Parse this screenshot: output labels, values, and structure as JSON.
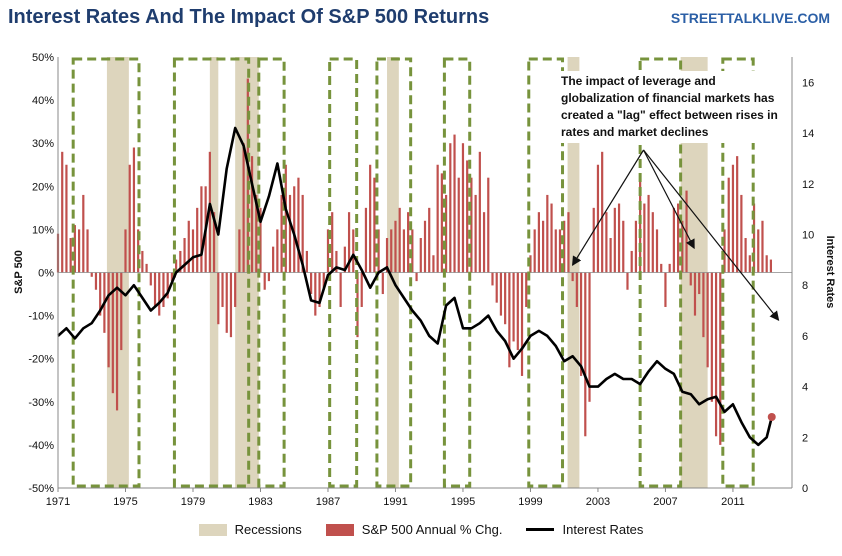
{
  "header": {
    "title": "Interest Rates And The Impact Of S&P 500 Returns",
    "watermark": "STREETTALKLIVE.COM"
  },
  "annotation": {
    "text": "The impact of leverage and globalization of financial markets has created a \"lag\" effect between rises in rates and market declines"
  },
  "colors": {
    "bar": "#c0504d",
    "recession": "#ddd5bd",
    "line": "#000000",
    "dash_box": "#77933c",
    "title": "#1f3d6e",
    "endpoint": "#c0504d"
  },
  "chart_data": {
    "type": "bar",
    "title": "Interest Rates And The Impact Of S&P 500 Returns",
    "xlabel": "",
    "ylabel": "S&P 500",
    "y2label": "Interest Rates",
    "xlim": [
      1971,
      2014.5
    ],
    "ylim": [
      -50,
      50
    ],
    "y2lim": [
      0,
      17
    ],
    "x_ticks": [
      "1971",
      "1975",
      "1979",
      "1983",
      "1987",
      "1991",
      "1995",
      "1999",
      "2003",
      "2007",
      "2011"
    ],
    "y_ticks": [
      "50%",
      "40%",
      "30%",
      "20%",
      "10%",
      "0%",
      "-10%",
      "-20%",
      "-30%",
      "-40%",
      "-50%"
    ],
    "y2_ticks": [
      "16",
      "14",
      "12",
      "10",
      "8",
      "6",
      "4",
      "2",
      "0"
    ],
    "legend": [
      "Recessions",
      "S&P 500 Annual % Chg.",
      "Interest Rates"
    ],
    "legend_position": "bottom",
    "grid": false,
    "recessions": [
      [
        1970.0,
        1970.9
      ],
      [
        1973.9,
        1975.2
      ],
      [
        1980.0,
        1980.5
      ],
      [
        1981.5,
        1982.9
      ],
      [
        1990.5,
        1991.2
      ],
      [
        2001.2,
        2001.9
      ],
      [
        2007.9,
        2009.5
      ]
    ],
    "highlight_periods": [
      [
        1971.9,
        1975.8
      ],
      [
        1977.9,
        1982.3
      ],
      [
        1982.9,
        1984.4
      ],
      [
        1987.1,
        1988.7
      ],
      [
        1989.9,
        1991.9
      ],
      [
        1993.9,
        1995.4
      ],
      [
        1998.9,
        2000.9
      ],
      [
        2005.5,
        2007.9
      ],
      [
        2010.4,
        2012.2
      ]
    ],
    "series": [
      {
        "name": "S&P 500 Annual % Chg.",
        "kind": "bar",
        "x": [
          1971.0,
          1971.25,
          1971.5,
          1971.75,
          1972.0,
          1972.25,
          1972.5,
          1972.75,
          1973.0,
          1973.25,
          1973.5,
          1973.75,
          1974.0,
          1974.25,
          1974.5,
          1974.75,
          1975.0,
          1975.25,
          1975.5,
          1975.75,
          1976.0,
          1976.25,
          1976.5,
          1976.75,
          1977.0,
          1977.25,
          1977.5,
          1977.75,
          1978.0,
          1978.25,
          1978.5,
          1978.75,
          1979.0,
          1979.25,
          1979.5,
          1979.75,
          1980.0,
          1980.25,
          1980.5,
          1980.75,
          1981.0,
          1981.25,
          1981.5,
          1981.75,
          1982.0,
          1982.25,
          1982.5,
          1982.75,
          1983.0,
          1983.25,
          1983.5,
          1983.75,
          1984.0,
          1984.25,
          1984.5,
          1984.75,
          1985.0,
          1985.25,
          1985.5,
          1985.75,
          1986.0,
          1986.25,
          1986.5,
          1986.75,
          1987.0,
          1987.25,
          1987.5,
          1987.75,
          1988.0,
          1988.25,
          1988.5,
          1988.75,
          1989.0,
          1989.25,
          1989.5,
          1989.75,
          1990.0,
          1990.25,
          1990.5,
          1990.75,
          1991.0,
          1991.25,
          1991.5,
          1991.75,
          1992.0,
          1992.25,
          1992.5,
          1992.75,
          1993.0,
          1993.25,
          1993.5,
          1993.75,
          1994.0,
          1994.25,
          1994.5,
          1994.75,
          1995.0,
          1995.25,
          1995.5,
          1995.75,
          1996.0,
          1996.25,
          1996.5,
          1996.75,
          1997.0,
          1997.25,
          1997.5,
          1997.75,
          1998.0,
          1998.25,
          1998.5,
          1998.75,
          1999.0,
          1999.25,
          1999.5,
          1999.75,
          2000.0,
          2000.25,
          2000.5,
          2000.75,
          2001.0,
          2001.25,
          2001.5,
          2001.75,
          2002.0,
          2002.25,
          2002.5,
          2002.75,
          2003.0,
          2003.25,
          2003.5,
          2003.75,
          2004.0,
          2004.25,
          2004.5,
          2004.75,
          2005.0,
          2005.25,
          2005.5,
          2005.75,
          2006.0,
          2006.25,
          2006.5,
          2006.75,
          2007.0,
          2007.25,
          2007.5,
          2007.75,
          2008.0,
          2008.25,
          2008.5,
          2008.75,
          2009.0,
          2009.25,
          2009.5,
          2009.75,
          2010.0,
          2010.25,
          2010.5,
          2010.75,
          2011.0,
          2011.25,
          2011.5,
          2011.75,
          2012.0,
          2012.25,
          2012.5,
          2012.75,
          2013.0,
          2013.25
        ],
        "values": [
          9,
          28,
          25,
          8,
          11,
          10,
          18,
          10,
          -1,
          -4,
          -10,
          -14,
          -22,
          -28,
          -32,
          -18,
          10,
          25,
          29,
          10,
          5,
          2,
          -3,
          -8,
          -10,
          -8,
          -6,
          -2,
          3,
          5,
          8,
          12,
          10,
          15,
          20,
          20,
          28,
          14,
          -12,
          -8,
          -14,
          -15,
          -8,
          10,
          30,
          45,
          27,
          18,
          15,
          -4,
          -2,
          6,
          10,
          18,
          25,
          18,
          20,
          22,
          18,
          5,
          -5,
          -10,
          -8,
          -4,
          10,
          14,
          5,
          -8,
          6,
          14,
          10,
          -15,
          -8,
          15,
          25,
          22,
          10,
          -5,
          8,
          10,
          12,
          15,
          10,
          14,
          10,
          -2,
          8,
          12,
          15,
          4,
          25,
          23,
          18,
          30,
          32,
          22,
          30,
          26,
          22,
          18,
          28,
          14,
          22,
          -3,
          -7,
          -10,
          -12,
          -22,
          -16,
          -18,
          -24,
          -8,
          4,
          10,
          14,
          12,
          18,
          16,
          10,
          10,
          12,
          14,
          -2,
          -8,
          -24,
          -38,
          -30,
          15,
          25,
          28,
          14,
          8,
          15,
          16,
          12,
          -4,
          5,
          12,
          22,
          16,
          18,
          14,
          10,
          2,
          -8,
          2,
          15,
          16,
          12,
          19,
          -3,
          -10,
          -5,
          -15,
          -22,
          -30,
          -38,
          -40,
          10,
          22,
          25,
          27,
          18,
          8,
          4,
          16,
          10,
          12,
          4,
          3
        ],
        "color": "#c0504d"
      },
      {
        "name": "Interest Rates",
        "kind": "line",
        "x": [
          1971.0,
          1971.5,
          1972.0,
          1972.5,
          1973.0,
          1973.5,
          1974.0,
          1974.5,
          1975.0,
          1975.5,
          1976.0,
          1976.5,
          1977.0,
          1977.5,
          1978.0,
          1978.5,
          1979.0,
          1979.5,
          1980.0,
          1980.5,
          1981.0,
          1981.5,
          1982.0,
          1982.5,
          1983.0,
          1983.5,
          1984.0,
          1984.5,
          1985.0,
          1985.5,
          1986.0,
          1986.5,
          1987.0,
          1987.5,
          1988.0,
          1988.5,
          1989.0,
          1989.5,
          1990.0,
          1990.5,
          1991.0,
          1991.5,
          1992.0,
          1992.5,
          1993.0,
          1993.5,
          1994.0,
          1994.5,
          1995.0,
          1995.5,
          1996.0,
          1996.5,
          1997.0,
          1997.5,
          1998.0,
          1998.5,
          1999.0,
          1999.5,
          2000.0,
          2000.5,
          2001.0,
          2001.5,
          2002.0,
          2002.5,
          2003.0,
          2003.5,
          2004.0,
          2004.5,
          2005.0,
          2005.5,
          2006.0,
          2006.5,
          2007.0,
          2007.5,
          2008.0,
          2008.5,
          2009.0,
          2009.5,
          2010.0,
          2010.5,
          2011.0,
          2011.5,
          2012.0,
          2012.5,
          2013.0,
          2013.3
        ],
        "values": [
          6.0,
          6.3,
          5.9,
          6.3,
          6.5,
          7.0,
          7.6,
          7.9,
          7.6,
          8.0,
          7.5,
          7.0,
          7.3,
          7.7,
          8.5,
          8.8,
          9.1,
          9.2,
          11.2,
          10.0,
          12.6,
          14.2,
          13.5,
          12.0,
          10.5,
          11.5,
          12.8,
          11.0,
          10.0,
          8.8,
          7.4,
          7.3,
          8.4,
          8.7,
          8.6,
          9.2,
          8.6,
          7.9,
          8.5,
          8.7,
          8.0,
          7.5,
          7.0,
          6.6,
          6.0,
          5.7,
          7.2,
          7.5,
          6.3,
          6.3,
          6.5,
          6.8,
          6.2,
          5.8,
          5.1,
          5.5,
          6.0,
          6.2,
          6.0,
          5.6,
          5.0,
          5.2,
          4.8,
          4.0,
          4.0,
          4.3,
          4.5,
          4.3,
          4.3,
          4.1,
          4.6,
          5.0,
          4.7,
          4.5,
          3.8,
          3.7,
          3.3,
          3.5,
          3.6,
          3.0,
          3.3,
          2.6,
          2.0,
          1.7,
          2.0,
          2.8
        ],
        "color": "#000000"
      }
    ]
  }
}
